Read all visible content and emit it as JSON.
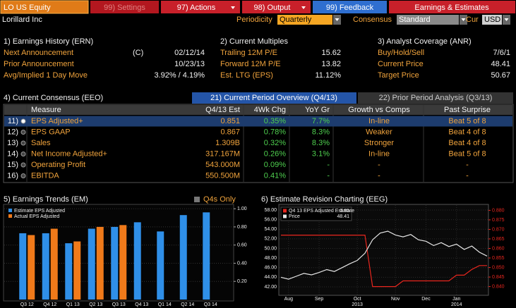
{
  "header": {
    "ticker": "LO US Equity",
    "buttons": [
      "99) Settings",
      "97) Actions",
      "98) Output",
      "99) Feedback"
    ],
    "title": "Earnings & Estimates"
  },
  "company": "Lorillard Inc",
  "controls": [
    {
      "label": "Periodicity",
      "value": "Quarterly"
    },
    {
      "label": "Consensus",
      "value": "Standard"
    },
    {
      "label": "Cur",
      "value": "USD"
    }
  ],
  "earnings_history": {
    "title": "1) Earnings History (ERN)",
    "rows": [
      {
        "label": "Next Announcement",
        "flag": "(C)",
        "value": "02/12/14"
      },
      {
        "label": "Prior Announcement",
        "value": "10/23/13"
      },
      {
        "label": "Avg/Implied 1 Day Move",
        "value": "3.92% / 4.19%"
      }
    ]
  },
  "current_multiples": {
    "title": "2) Current Multiples",
    "rows": [
      {
        "label": "Trailing 12M P/E",
        "value": "15.62"
      },
      {
        "label": "Forward 12M P/E",
        "value": "13.82"
      },
      {
        "label": "Est. LTG (EPS)",
        "value": "11.12%"
      }
    ]
  },
  "analyst_coverage": {
    "title": "3) Analyst Coverage (ANR)",
    "rows": [
      {
        "label": "Buy/Hold/Sell",
        "value": "7/6/1"
      },
      {
        "label": "Current Price",
        "value": "48.41"
      },
      {
        "label": "Target Price",
        "value": "50.67"
      }
    ]
  },
  "consensus": {
    "title": "4) Current Consensus (EEO)",
    "tabs": [
      "21) Current Period Overview (Q4/13)",
      "22) Prior Period Analysis (Q3/13)"
    ],
    "table": {
      "headers": [
        "Measure",
        "Q4/13 Est",
        "4Wk Chg",
        "YoY Gr",
        "Growth vs Comps",
        "Past Surprise"
      ],
      "rows": [
        [
          "11)",
          "EPS Adjusted+",
          "0.851",
          "0.35%",
          "7.7%",
          "In-line",
          "Beat 5 of 8"
        ],
        [
          "12)",
          "EPS GAAP",
          "0.867",
          "0.78%",
          "8.3%",
          "Weaker",
          "Beat 4 of 8"
        ],
        [
          "13)",
          "Sales",
          "1.309B",
          "0.32%",
          "8.3%",
          "Stronger",
          "Beat 4 of 8"
        ],
        [
          "14)",
          "Net Income Adjusted+",
          "317.167M",
          "0.26%",
          "3.1%",
          "In-line",
          "Beat 5 of 8"
        ],
        [
          "15)",
          "Operating Profit",
          "543.000M",
          "0.09%",
          "-",
          "-",
          "-"
        ],
        [
          "16)",
          "EBITDA",
          "550.500M",
          "0.41%",
          "-",
          "-",
          "-"
        ]
      ]
    }
  },
  "chart_data": [
    {
      "type": "bar",
      "title": "5) Earnings Trends (EM)",
      "checkbox": "Q4s Only",
      "categories": [
        "Q3 12",
        "Q4 12",
        "Q1 13",
        "Q2 13",
        "Q3 13",
        "Q4 13",
        "Q1 14",
        "Q2 14",
        "Q3 14"
      ],
      "series": [
        {
          "name": "Estimate EPS Adjusted",
          "color": "#2f8fe8",
          "values": [
            0.73,
            0.73,
            0.62,
            0.78,
            0.8,
            0.851,
            0.75,
            0.93,
            0.96
          ]
        },
        {
          "name": "Actual EPS Adjusted",
          "color": "#f07a1a",
          "values": [
            0.71,
            0.78,
            0.64,
            0.8,
            0.82,
            null,
            null,
            null,
            null
          ]
        }
      ],
      "ylim": [
        0,
        1.04
      ],
      "yticks": [
        {
          "value": 0.2,
          "label": "0.20"
        },
        {
          "value": 0.4,
          "label": "0.40"
        },
        {
          "value": 0.6,
          "label": "0.60"
        },
        {
          "value": 0.8,
          "label": "0.80"
        },
        {
          "value": 1,
          "label": "1.00"
        }
      ],
      "grid": true
    },
    {
      "type": "line",
      "title": "6) Estimate Revision Charting (EEG)",
      "categories": [
        null,
        "Aug",
        null,
        null,
        null,
        "Sep",
        null,
        null,
        null,
        null,
        "Oct",
        null,
        null,
        null,
        null,
        "Nov",
        null,
        null,
        null,
        "Dec",
        null,
        null,
        null,
        "Jan",
        null,
        null,
        null,
        null
      ],
      "categories2": [
        null,
        null,
        null,
        null,
        null,
        null,
        null,
        null,
        null,
        null,
        "2013",
        null,
        null,
        null,
        null,
        null,
        null,
        null,
        null,
        null,
        null,
        null,
        null,
        "2014",
        null,
        null,
        null,
        null
      ],
      "series": [
        {
          "name": "Q4 13 EPS Adjusted Estimate",
          "color": "#e8261e",
          "axis": "y2",
          "values": [
            0.867,
            0.867,
            0.867,
            0.867,
            0.867,
            0.867,
            0.867,
            0.867,
            0.867,
            0.867,
            0.867,
            0.867,
            0.84,
            0.84,
            0.84,
            0.84,
            0.843,
            0.843,
            0.843,
            0.843,
            0.843,
            0.843,
            0.843,
            0.846,
            0.846,
            0.849,
            0.851,
            0.851
          ]
        },
        {
          "name": "Price",
          "color": "#e6e6e6",
          "values": [
            44.0,
            43.6,
            44.2,
            44.8,
            44.5,
            45.0,
            45.6,
            45.2,
            46.0,
            46.8,
            47.5,
            49.0,
            51.8,
            53.2,
            53.6,
            52.8,
            52.4,
            52.9,
            51.8,
            51.5,
            50.6,
            51.2,
            50.4,
            50.9,
            49.8,
            50.5,
            49.2,
            48.41
          ]
        }
      ],
      "legend_values": [
        "0.85",
        "48.41"
      ],
      "ylim": [
        42,
        58
      ],
      "yticks": [
        {
          "value": 42,
          "label": "42.00"
        },
        {
          "value": 44,
          "label": "44.00"
        },
        {
          "value": 46,
          "label": "46.00"
        },
        {
          "value": 48,
          "label": "48.00"
        },
        {
          "value": 50,
          "label": "50.00"
        },
        {
          "value": 52,
          "label": "52.00"
        },
        {
          "value": 54,
          "label": "54.00"
        },
        {
          "value": 56,
          "label": "56.00"
        },
        {
          "value": 58,
          "label": "58.00"
        }
      ],
      "y2lim": [
        0.838,
        0.882
      ],
      "y2ticks": [
        {
          "value": 0.84,
          "label": "0.840"
        },
        {
          "value": 0.845,
          "label": "0.845"
        },
        {
          "value": 0.85,
          "label": "0.850"
        },
        {
          "value": 0.855,
          "label": "0.855"
        },
        {
          "value": 0.86,
          "label": "0.860"
        },
        {
          "value": 0.865,
          "label": "0.865"
        },
        {
          "value": 0.87,
          "label": "0.870"
        },
        {
          "value": 0.875,
          "label": "0.875"
        },
        {
          "value": 0.88,
          "label": "0.880"
        }
      ],
      "grid": true
    }
  ]
}
